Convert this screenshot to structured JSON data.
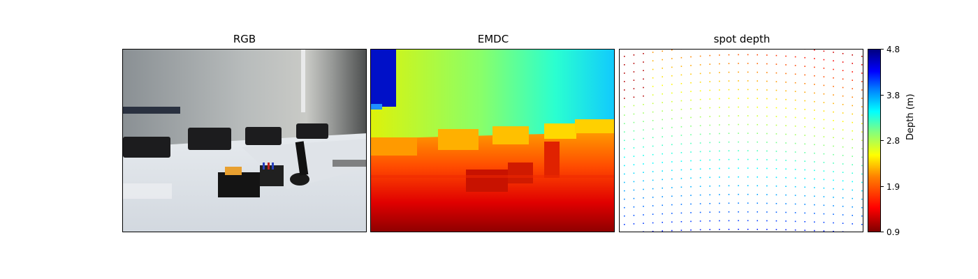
{
  "figure": {
    "panels": [
      {
        "title": "RGB"
      },
      {
        "title": "EMDC"
      },
      {
        "title": "spot depth"
      }
    ]
  },
  "chart_data": {
    "type": "heatmap",
    "colormap": "jet_r",
    "colorbar": {
      "label": "Depth (m)",
      "range": [
        0.9,
        4.8
      ],
      "ticks": [
        "4.8",
        "3.8",
        "2.8",
        "1.9",
        "0.9"
      ]
    },
    "panels": [
      "RGB",
      "EMDC",
      "spot depth"
    ]
  }
}
